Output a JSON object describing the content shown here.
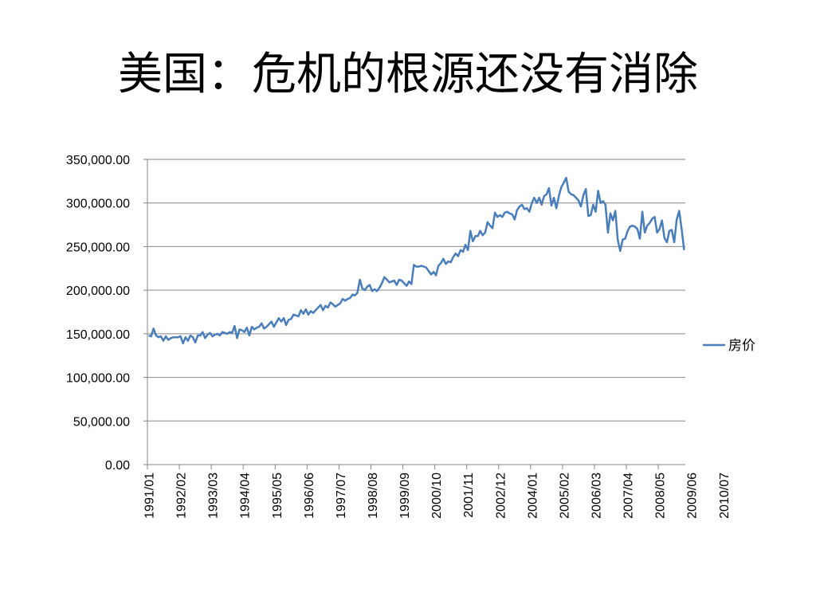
{
  "slide": {
    "title": "美国：危机的根源还没有消除"
  },
  "chart_data": {
    "type": "line",
    "ylim": [
      0,
      350000
    ],
    "y_ticks": [
      "0.00",
      "50,000.00",
      "100,000.00",
      "150,000.00",
      "200,000.00",
      "250,000.00",
      "300,000.00",
      "350,000.00"
    ],
    "y_tick_values": [
      0,
      50000,
      100000,
      150000,
      200000,
      250000,
      300000,
      350000
    ],
    "x_tick_labels": [
      "1991/01",
      "1992/02",
      "1993/03",
      "1994/04",
      "1995/05",
      "1996/06",
      "1997/07",
      "1998/08",
      "1999/09",
      "2000/10",
      "2001/11",
      "2002/12",
      "2004/01",
      "2005/02",
      "2006/03",
      "2007/04",
      "2008/05",
      "2009/06",
      "2010/07"
    ],
    "grid": true,
    "legend_position": "right",
    "series": [
      {
        "name": "房价",
        "color": "#4a7ebb",
        "start": "1991/01",
        "frequency": "monthly",
        "values": [
          148000,
          147000,
          156000,
          148000,
          146000,
          147000,
          142000,
          147000,
          143000,
          145000,
          146000,
          146000,
          146000,
          147000,
          139000,
          146000,
          142000,
          148000,
          146000,
          140000,
          148000,
          148000,
          152000,
          145000,
          149000,
          151000,
          147000,
          149000,
          150000,
          148000,
          152000,
          151000,
          150000,
          152000,
          151000,
          159000,
          145000,
          155000,
          154000,
          152000,
          157000,
          148000,
          158000,
          155000,
          157000,
          158000,
          162000,
          156000,
          158000,
          161000,
          164000,
          158000,
          163000,
          168000,
          164000,
          168000,
          160000,
          166000,
          167000,
          172000,
          171000,
          170000,
          177000,
          173000,
          178000,
          172000,
          176000,
          174000,
          177000,
          180000,
          183000,
          177000,
          182000,
          180000,
          186000,
          184000,
          181000,
          183000,
          185000,
          190000,
          188000,
          190000,
          191000,
          195000,
          194000,
          197000,
          212000,
          202000,
          200000,
          204000,
          206000,
          199000,
          201000,
          199000,
          203000,
          208000,
          215000,
          212000,
          209000,
          210000,
          211000,
          206000,
          212000,
          211000,
          208000,
          205000,
          210000,
          207000,
          229000,
          227000,
          227000,
          228000,
          227000,
          226000,
          222000,
          218000,
          221000,
          217000,
          228000,
          231000,
          236000,
          230000,
          233000,
          232000,
          238000,
          242000,
          239000,
          246000,
          244000,
          252000,
          246000,
          268000,
          256000,
          262000,
          262000,
          268000,
          263000,
          266000,
          278000,
          274000,
          271000,
          289000,
          284000,
          286000,
          284000,
          289000,
          290000,
          288000,
          287000,
          281000,
          292000,
          296000,
          298000,
          293000,
          294000,
          290000,
          300000,
          306000,
          300000,
          306000,
          298000,
          308000,
          310000,
          317000,
          297000,
          306000,
          294000,
          308000,
          318000,
          323000,
          329000,
          313000,
          310000,
          309000,
          306000,
          303000,
          296000,
          309000,
          316000,
          285000,
          286000,
          298000,
          290000,
          314000,
          300000,
          302000,
          298000,
          266000,
          288000,
          280000,
          291000,
          258000,
          245000,
          258000,
          259000,
          268000,
          273000,
          274000,
          273000,
          270000,
          259000,
          290000,
          266000,
          274000,
          277000,
          282000,
          284000,
          266000,
          270000,
          280000,
          260000,
          255000,
          268000,
          269000,
          255000,
          281000,
          291000,
          270000,
          246000
        ]
      }
    ]
  }
}
